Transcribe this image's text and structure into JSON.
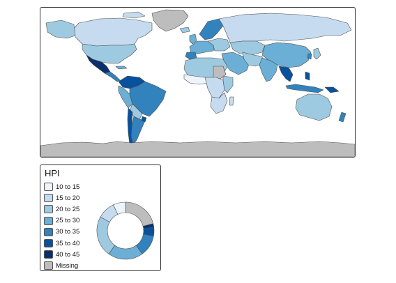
{
  "legend": {
    "title": "HPI",
    "classes": [
      {
        "label": "10 to 15",
        "color": "#eef4fc"
      },
      {
        "label": "15 to 20",
        "color": "#c6dbef"
      },
      {
        "label": "20 to 25",
        "color": "#9ecae1"
      },
      {
        "label": "25 to 30",
        "color": "#6baed6"
      },
      {
        "label": "30 to 35",
        "color": "#3182bd"
      },
      {
        "label": "35 to 40",
        "color": "#08519c"
      },
      {
        "label": "40 to 45",
        "color": "#08306b"
      },
      {
        "label": "Missing",
        "color": "#bdbdbd"
      }
    ]
  },
  "chart_data": {
    "type": "pie",
    "title": "",
    "categories": [
      "10 to 15",
      "15 to 20",
      "20 to 25",
      "25 to 30",
      "30 to 35",
      "35 to 40",
      "40 to 45",
      "Missing"
    ],
    "values": [
      7,
      10,
      23,
      20,
      12,
      5,
      2,
      21
    ],
    "colors": [
      "#eef4fc",
      "#c6dbef",
      "#9ecae1",
      "#6baed6",
      "#3182bd",
      "#08519c",
      "#08306b",
      "#bdbdbd"
    ],
    "legend_placement": "bottom-left"
  },
  "map": {
    "colors": {
      "ocean": "#ffffff",
      "border": "#4d4d4d",
      "missing": "#bdbdbd"
    }
  }
}
